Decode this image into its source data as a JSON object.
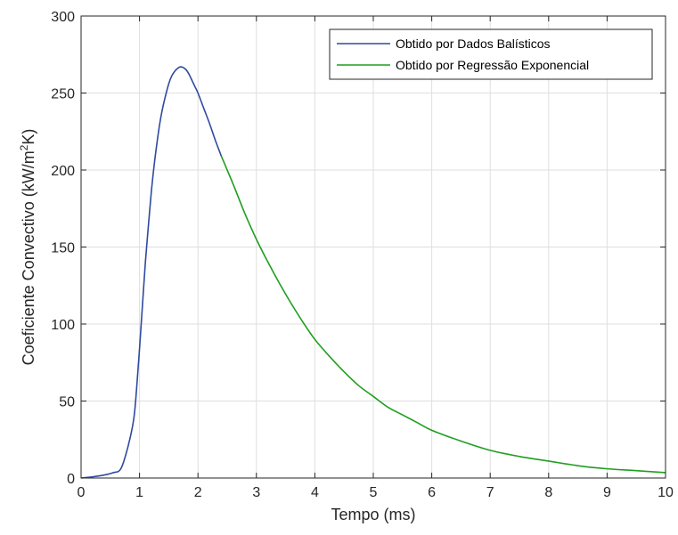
{
  "chart_data": {
    "type": "line",
    "title": "",
    "xlabel": "Tempo (ms)",
    "ylabel_main": "Coeficiente Convectivo (kW/m",
    "ylabel_sup": "2",
    "ylabel_end": "K)",
    "xlim": [
      0,
      10
    ],
    "ylim": [
      0,
      300
    ],
    "xticks": [
      0,
      1,
      2,
      3,
      4,
      5,
      6,
      7,
      8,
      9,
      10
    ],
    "yticks": [
      0,
      50,
      100,
      150,
      200,
      250,
      300
    ],
    "xtick_labels": [
      "0",
      "1",
      "2",
      "3",
      "4",
      "5",
      "6",
      "7",
      "8",
      "9",
      "10"
    ],
    "ytick_labels": [
      "0",
      "50",
      "100",
      "150",
      "200",
      "250",
      "300"
    ],
    "grid": true,
    "legend_position": "top-right",
    "series": [
      {
        "name": "Obtido por Dados Balísticos",
        "color": "#2e4a9e",
        "x": [
          0,
          0.2,
          0.4,
          0.55,
          0.68,
          0.8,
          0.9,
          0.95,
          1.0,
          1.05,
          1.1,
          1.15,
          1.2,
          1.25,
          1.3,
          1.35,
          1.4,
          1.45,
          1.5,
          1.55,
          1.6,
          1.65,
          1.7,
          1.75,
          1.8,
          1.85,
          1.9,
          1.95,
          2.0,
          2.1,
          2.2,
          2.3,
          2.4
        ],
        "y": [
          0,
          0.8,
          2,
          3.5,
          6,
          20,
          38,
          58,
          84,
          112,
          140,
          163,
          185,
          203,
          218,
          231,
          241,
          249,
          256,
          261,
          264,
          266,
          267,
          266.5,
          265,
          262,
          258,
          254,
          250,
          240,
          230,
          219,
          209
        ]
      },
      {
        "name": "Obtido por Regressão Exponencial",
        "color": "#1f9e1f",
        "x": [
          2.4,
          2.6,
          2.8,
          3.0,
          3.2,
          3.4,
          3.6,
          3.8,
          4.0,
          4.25,
          4.5,
          4.75,
          5.0,
          5.25,
          5.5,
          5.75,
          6.0,
          6.5,
          7.0,
          7.5,
          8.0,
          8.5,
          9.0,
          9.5,
          10.0
        ],
        "y": [
          209,
          191,
          172,
          155,
          140,
          126,
          113,
          101,
          90,
          79,
          69,
          60,
          53,
          46,
          41,
          36,
          31,
          24,
          18,
          14,
          11,
          8,
          6,
          4.8,
          3.5
        ]
      }
    ]
  }
}
